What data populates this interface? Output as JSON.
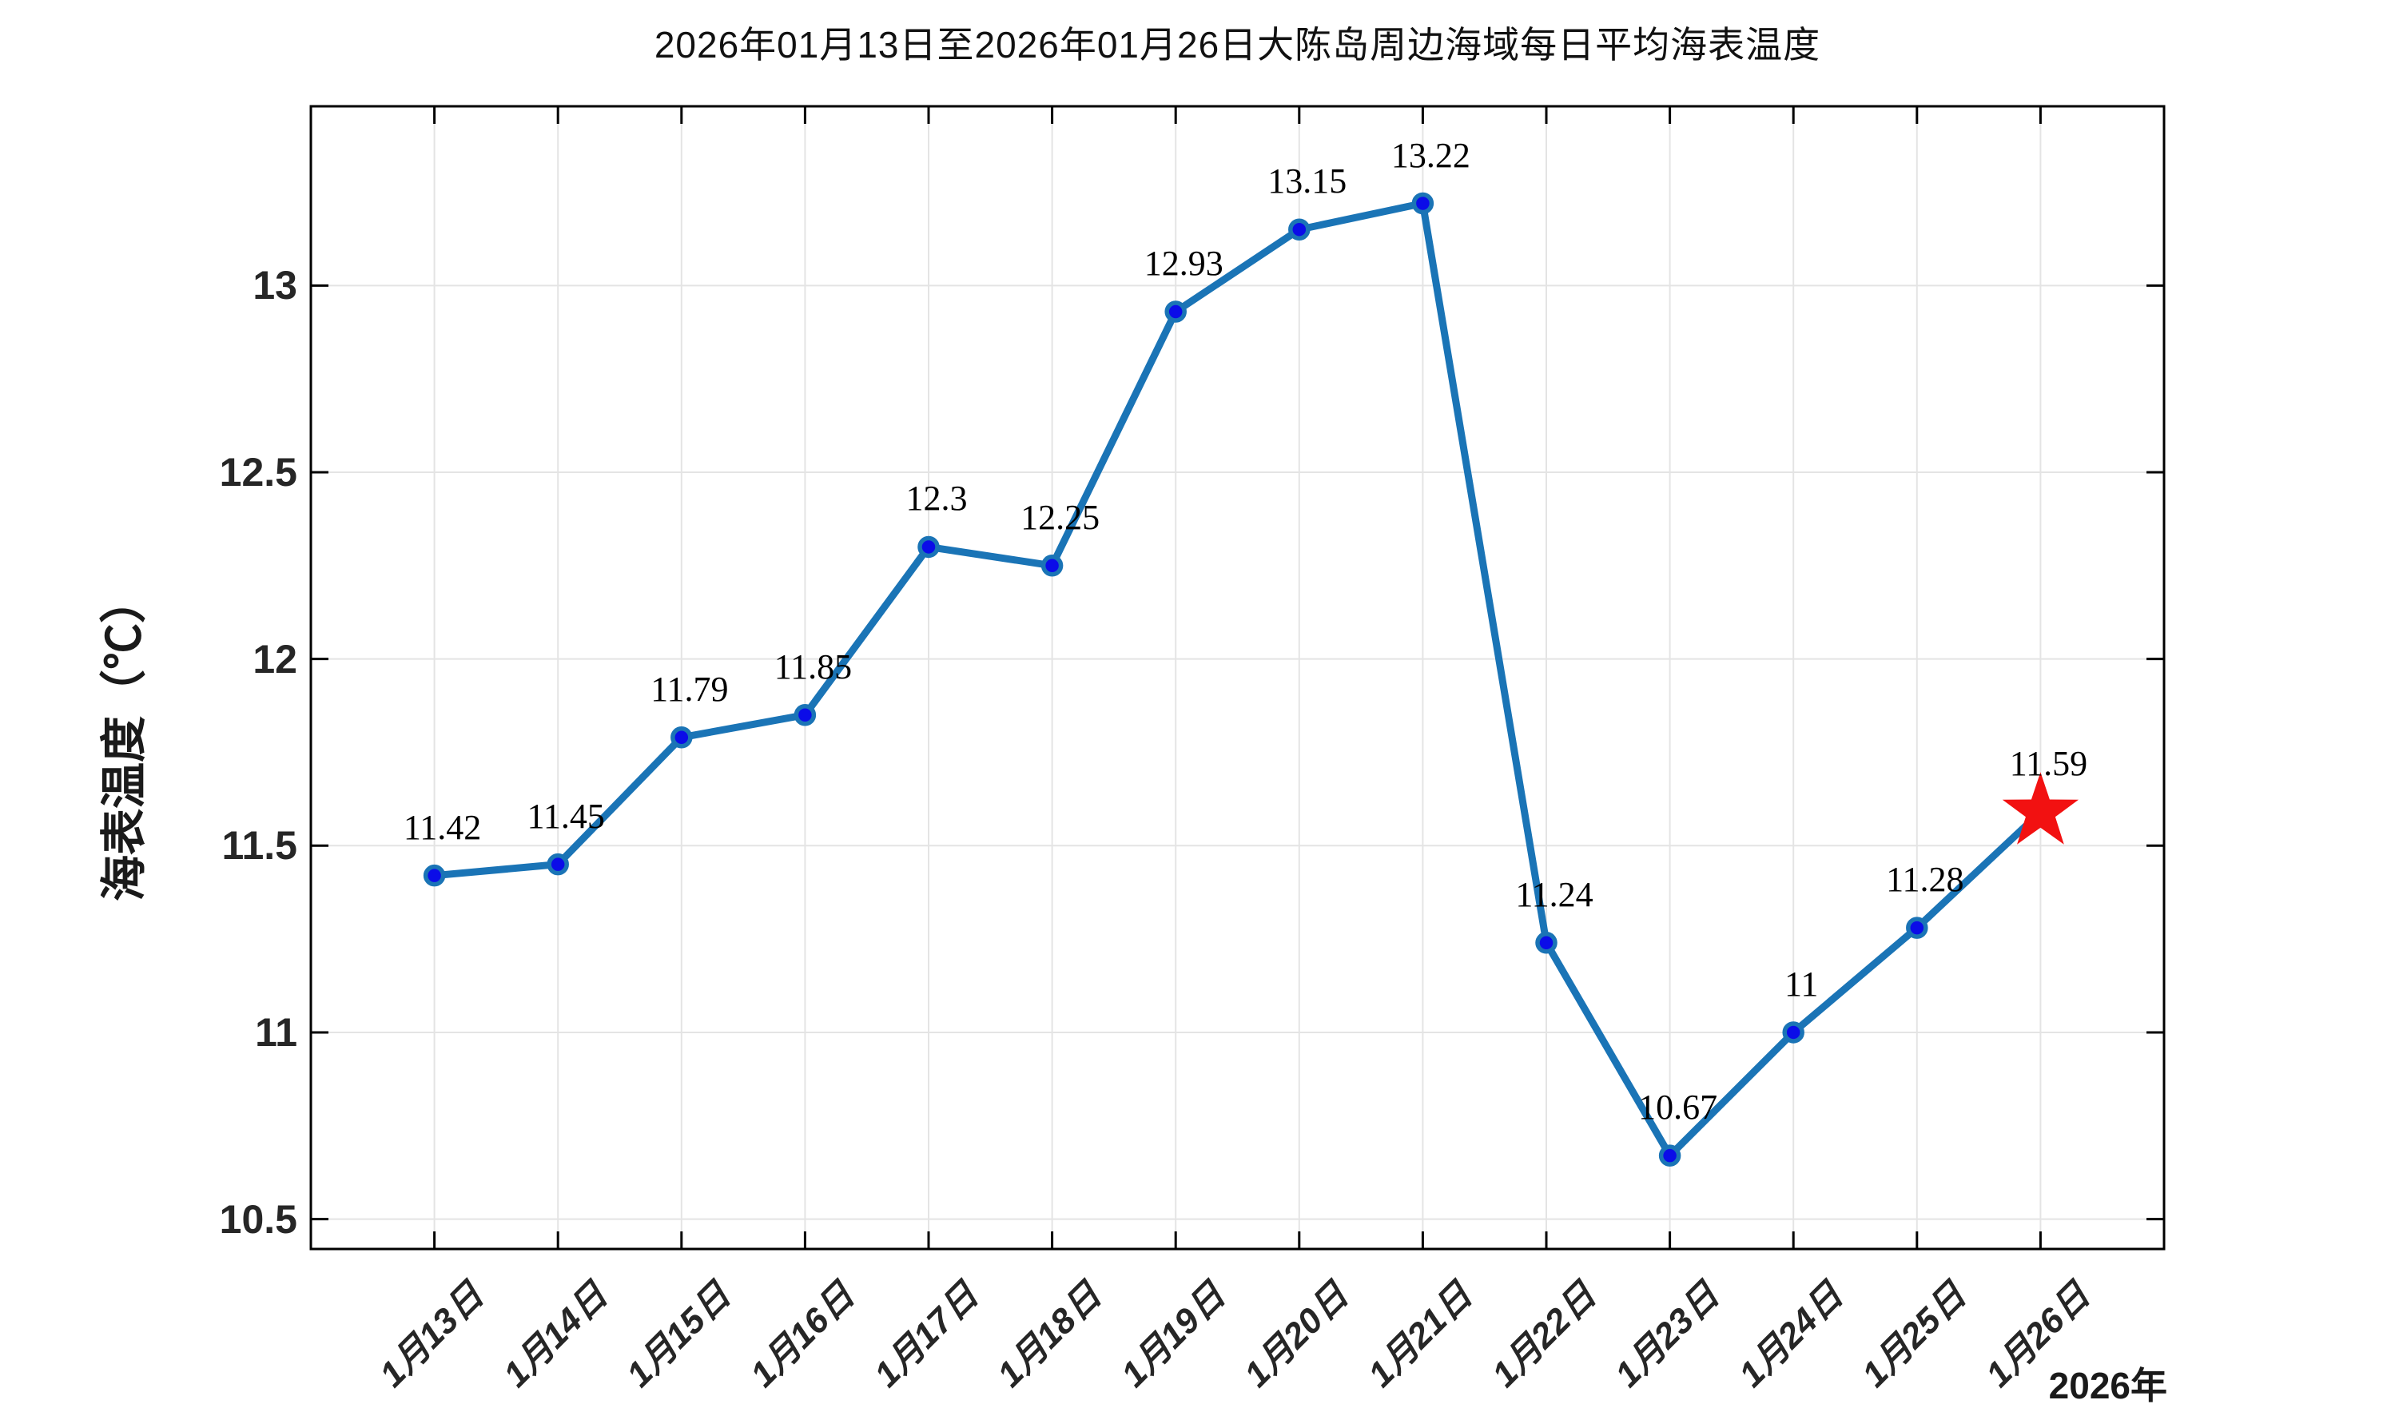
{
  "chart_data": {
    "type": "line",
    "title": "2026年01月13日至2026年01月26日大陈岛周边海域每日平均海表温度",
    "ylabel": "海表温度（℃）",
    "xlabel": "",
    "x_axis_year_label": "2026年",
    "categories": [
      "1月13日",
      "1月14日",
      "1月15日",
      "1月16日",
      "1月17日",
      "1月18日",
      "1月19日",
      "1月20日",
      "1月21日",
      "1月22日",
      "1月23日",
      "1月24日",
      "1月25日",
      "1月26日"
    ],
    "values": [
      11.42,
      11.45,
      11.79,
      11.85,
      12.3,
      12.25,
      12.93,
      13.15,
      13.22,
      11.24,
      10.67,
      11,
      11.28,
      11.59
    ],
    "point_labels": [
      "11.42",
      "11.45",
      "11.79",
      "11.85",
      "12.3",
      "12.25",
      "12.93",
      "13.15",
      "13.22",
      "11.24",
      "10.67",
      "11",
      "11.28",
      "11.59"
    ],
    "ylim": [
      10.42,
      13.48
    ],
    "yticks": [
      10.5,
      11,
      11.5,
      12,
      12.5,
      13
    ],
    "ytick_labels": [
      "10.5",
      "11",
      "11.5",
      "12",
      "12.5",
      "13"
    ],
    "grid": true,
    "legend_position": "none",
    "marker": "filled-circle",
    "last_point_marker": "red-star",
    "colors": {
      "line": "#1a74b6",
      "marker_face": "#0b0ce8",
      "star": "#f21111",
      "grid": "#e4e4e4",
      "axis": "#000000",
      "tick_text": "#262626",
      "label_text": "#000000"
    }
  }
}
